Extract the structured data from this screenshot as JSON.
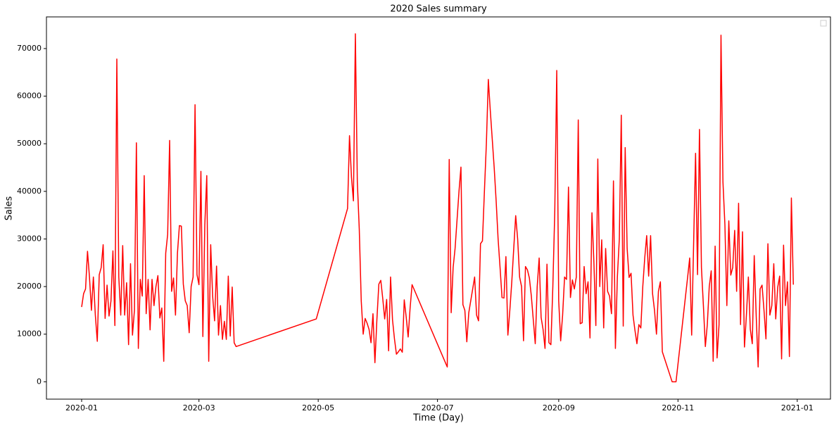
{
  "chart_data": {
    "type": "line",
    "title": "2020 Sales summary",
    "x_label": "Time (Day)",
    "y_label": "Sales",
    "color": "#ff0000",
    "xlim": [
      "2019-12-14",
      "2021-01-18"
    ],
    "xticks": [
      {
        "value": "2020-01-01",
        "label": "2020-01"
      },
      {
        "value": "2020-03-01",
        "label": "2020-03"
      },
      {
        "value": "2020-05-01",
        "label": "2020-05"
      },
      {
        "value": "2020-07-01",
        "label": "2020-07"
      },
      {
        "value": "2020-09-01",
        "label": "2020-09"
      },
      {
        "value": "2020-11-01",
        "label": "2020-11"
      },
      {
        "value": "2021-01-01",
        "label": "2021-01"
      }
    ],
    "ylim": [
      -3650,
      76650
    ],
    "yticks": [
      0,
      10000,
      20000,
      30000,
      40000,
      50000,
      60000,
      70000
    ],
    "x": [
      "2020-01-01",
      "2020-01-02",
      "2020-01-03",
      "2020-01-04",
      "2020-01-05",
      "2020-01-06",
      "2020-01-07",
      "2020-01-08",
      "2020-01-09",
      "2020-01-10",
      "2020-01-11",
      "2020-01-12",
      "2020-01-13",
      "2020-01-14",
      "2020-01-15",
      "2020-01-16",
      "2020-01-17",
      "2020-01-18",
      "2020-01-19",
      "2020-01-20",
      "2020-01-21",
      "2020-01-22",
      "2020-01-23",
      "2020-01-24",
      "2020-01-25",
      "2020-01-26",
      "2020-01-27",
      "2020-01-28",
      "2020-01-29",
      "2020-01-30",
      "2020-01-31",
      "2020-02-01",
      "2020-02-02",
      "2020-02-03",
      "2020-02-04",
      "2020-02-05",
      "2020-02-06",
      "2020-02-07",
      "2020-02-08",
      "2020-02-09",
      "2020-02-10",
      "2020-02-11",
      "2020-02-12",
      "2020-02-13",
      "2020-02-14",
      "2020-02-15",
      "2020-02-16",
      "2020-02-17",
      "2020-02-18",
      "2020-02-19",
      "2020-02-20",
      "2020-02-21",
      "2020-02-22",
      "2020-02-23",
      "2020-02-24",
      "2020-02-25",
      "2020-02-26",
      "2020-02-27",
      "2020-02-28",
      "2020-02-29",
      "2020-03-01",
      "2020-03-02",
      "2020-03-03",
      "2020-03-04",
      "2020-03-05",
      "2020-03-06",
      "2020-03-07",
      "2020-03-08",
      "2020-03-09",
      "2020-03-10",
      "2020-03-11",
      "2020-03-12",
      "2020-03-13",
      "2020-03-14",
      "2020-03-15",
      "2020-03-16",
      "2020-03-17",
      "2020-03-18",
      "2020-03-19",
      "2020-03-20",
      "2020-04-30",
      "2020-05-16",
      "2020-05-17",
      "2020-05-18",
      "2020-05-19",
      "2020-05-20",
      "2020-05-21",
      "2020-05-22",
      "2020-05-23",
      "2020-05-24",
      "2020-05-25",
      "2020-05-26",
      "2020-05-27",
      "2020-05-28",
      "2020-05-29",
      "2020-05-30",
      "2020-05-31",
      "2020-06-01",
      "2020-06-02",
      "2020-06-03",
      "2020-06-04",
      "2020-06-05",
      "2020-06-06",
      "2020-06-07",
      "2020-06-08",
      "2020-06-09",
      "2020-06-10",
      "2020-06-11",
      "2020-06-12",
      "2020-06-13",
      "2020-06-14",
      "2020-06-15",
      "2020-06-16",
      "2020-06-17",
      "2020-06-18",
      "2020-07-06",
      "2020-07-07",
      "2020-07-08",
      "2020-07-09",
      "2020-07-10",
      "2020-07-11",
      "2020-07-12",
      "2020-07-13",
      "2020-07-14",
      "2020-07-15",
      "2020-07-16",
      "2020-07-17",
      "2020-07-18",
      "2020-07-19",
      "2020-07-20",
      "2020-07-21",
      "2020-07-22",
      "2020-07-23",
      "2020-07-24",
      "2020-07-25",
      "2020-07-26",
      "2020-07-27",
      "2020-07-28",
      "2020-07-29",
      "2020-07-30",
      "2020-07-31",
      "2020-08-01",
      "2020-08-02",
      "2020-08-03",
      "2020-08-04",
      "2020-08-05",
      "2020-08-06",
      "2020-08-07",
      "2020-08-08",
      "2020-08-09",
      "2020-08-10",
      "2020-08-11",
      "2020-08-12",
      "2020-08-13",
      "2020-08-14",
      "2020-08-15",
      "2020-08-16",
      "2020-08-17",
      "2020-08-18",
      "2020-08-19",
      "2020-08-20",
      "2020-08-21",
      "2020-08-22",
      "2020-08-23",
      "2020-08-24",
      "2020-08-25",
      "2020-08-26",
      "2020-08-27",
      "2020-08-28",
      "2020-08-29",
      "2020-08-30",
      "2020-08-31",
      "2020-09-01",
      "2020-09-02",
      "2020-09-03",
      "2020-09-04",
      "2020-09-05",
      "2020-09-06",
      "2020-09-07",
      "2020-09-08",
      "2020-09-09",
      "2020-09-10",
      "2020-09-11",
      "2020-09-12",
      "2020-09-13",
      "2020-09-14",
      "2020-09-15",
      "2020-09-16",
      "2020-09-17",
      "2020-09-18",
      "2020-09-19",
      "2020-09-20",
      "2020-09-21",
      "2020-09-22",
      "2020-09-23",
      "2020-09-24",
      "2020-09-25",
      "2020-09-26",
      "2020-09-27",
      "2020-09-28",
      "2020-09-29",
      "2020-09-30",
      "2020-10-01",
      "2020-10-02",
      "2020-10-03",
      "2020-10-04",
      "2020-10-05",
      "2020-10-06",
      "2020-10-07",
      "2020-10-08",
      "2020-10-09",
      "2020-10-10",
      "2020-10-11",
      "2020-10-12",
      "2020-10-13",
      "2020-10-14",
      "2020-10-15",
      "2020-10-16",
      "2020-10-17",
      "2020-10-18",
      "2020-10-19",
      "2020-10-20",
      "2020-10-21",
      "2020-10-22",
      "2020-10-23",
      "2020-10-24",
      "2020-10-29",
      "2020-10-30",
      "2020-10-31",
      "2020-11-01",
      "2020-11-02",
      "2020-11-03",
      "2020-11-04",
      "2020-11-05",
      "2020-11-06",
      "2020-11-07",
      "2020-11-08",
      "2020-11-09",
      "2020-11-10",
      "2020-11-11",
      "2020-11-12",
      "2020-11-13",
      "2020-11-14",
      "2020-11-15",
      "2020-11-16",
      "2020-11-17",
      "2020-11-18",
      "2020-11-19",
      "2020-11-20",
      "2020-11-21",
      "2020-11-22",
      "2020-11-23",
      "2020-11-24",
      "2020-11-25",
      "2020-11-26",
      "2020-11-27",
      "2020-11-28",
      "2020-11-29",
      "2020-11-30",
      "2020-12-01",
      "2020-12-02",
      "2020-12-03",
      "2020-12-04",
      "2020-12-05",
      "2020-12-06",
      "2020-12-07",
      "2020-12-08",
      "2020-12-09",
      "2020-12-10",
      "2020-12-11",
      "2020-12-12",
      "2020-12-13",
      "2020-12-14",
      "2020-12-15",
      "2020-12-16",
      "2020-12-17",
      "2020-12-18",
      "2020-12-19",
      "2020-12-20",
      "2020-12-21",
      "2020-12-22",
      "2020-12-23",
      "2020-12-24",
      "2020-12-25",
      "2020-12-26",
      "2020-12-27",
      "2020-12-28",
      "2020-12-29",
      "2020-12-30"
    ],
    "values": [
      15700,
      18500,
      19500,
      27400,
      22000,
      15000,
      22000,
      14000,
      8500,
      22500,
      24000,
      28800,
      13300,
      20300,
      13800,
      17000,
      27500,
      11800,
      67800,
      22000,
      14000,
      28600,
      14000,
      20800,
      7800,
      24800,
      9800,
      15000,
      50200,
      7000,
      21500,
      18000,
      43300,
      14300,
      21500,
      10900,
      21500,
      16000,
      20000,
      22300,
      13400,
      15500,
      4300,
      27000,
      31000,
      50700,
      19000,
      21800,
      14000,
      27000,
      32800,
      32700,
      20500,
      17000,
      16000,
      10300,
      20000,
      22000,
      58200,
      22500,
      20400,
      44200,
      9500,
      33000,
      43300,
      4300,
      28800,
      18000,
      12800,
      24300,
      9800,
      16000,
      8900,
      12700,
      8900,
      22200,
      9600,
      19900,
      8200,
      7400,
      13200,
      36400,
      51700,
      43000,
      38000,
      73100,
      42000,
      32000,
      17000,
      10000,
      13300,
      12300,
      11000,
      8200,
      14300,
      4000,
      13000,
      20500,
      21300,
      17500,
      13200,
      17300,
      6500,
      22000,
      13000,
      9000,
      5800,
      6300,
      6900,
      6200,
      17200,
      13600,
      9400,
      15500,
      20400,
      3100,
      46700,
      14500,
      24000,
      28000,
      34000,
      40000,
      45100,
      16200,
      15000,
      8400,
      14500,
      17000,
      19500,
      22000,
      14000,
      12800,
      29000,
      29600,
      40000,
      50000,
      63500,
      57000,
      51000,
      45000,
      38000,
      30000,
      24000,
      17700,
      17600,
      26300,
      9800,
      15000,
      21000,
      28000,
      34900,
      30000,
      22000,
      20000,
      8600,
      24200,
      23500,
      21800,
      18000,
      13000,
      8000,
      20000,
      26000,
      13500,
      11000,
      7000,
      24700,
      8200,
      7800,
      20000,
      36000,
      65400,
      17000,
      8600,
      14000,
      22000,
      21500,
      40900,
      17700,
      21400,
      19500,
      22000,
      55000,
      12200,
      12400,
      24200,
      18500,
      21000,
      9200,
      35500,
      25000,
      11800,
      46800,
      20000,
      29800,
      11300,
      28000,
      19000,
      18000,
      14300,
      42200,
      7000,
      22000,
      30000,
      56000,
      11700,
      49200,
      28000,
      21900,
      22800,
      14000,
      10800,
      8000,
      12000,
      11300,
      20000,
      26000,
      30700,
      22200,
      30700,
      18500,
      15000,
      10000,
      19000,
      21000,
      6300,
      0,
      0,
      0,
      3700,
      7400,
      11100,
      14800,
      18500,
      22200,
      26000,
      9800,
      29000,
      48000,
      22500,
      53000,
      24000,
      16000,
      7400,
      12000,
      20000,
      23300,
      4300,
      28500,
      5000,
      12000,
      72800,
      42000,
      33000,
      16000,
      33800,
      22400,
      24000,
      31800,
      19000,
      37500,
      12000,
      31500,
      7300,
      14000,
      22000,
      11000,
      8000,
      26500,
      14000,
      3100,
      19500,
      20300,
      15000,
      9000,
      29000,
      14000,
      16000,
      24800,
      13200,
      19800,
      22200,
      4800,
      28700,
      16000,
      21000,
      5300,
      38600,
      20400
    ]
  }
}
